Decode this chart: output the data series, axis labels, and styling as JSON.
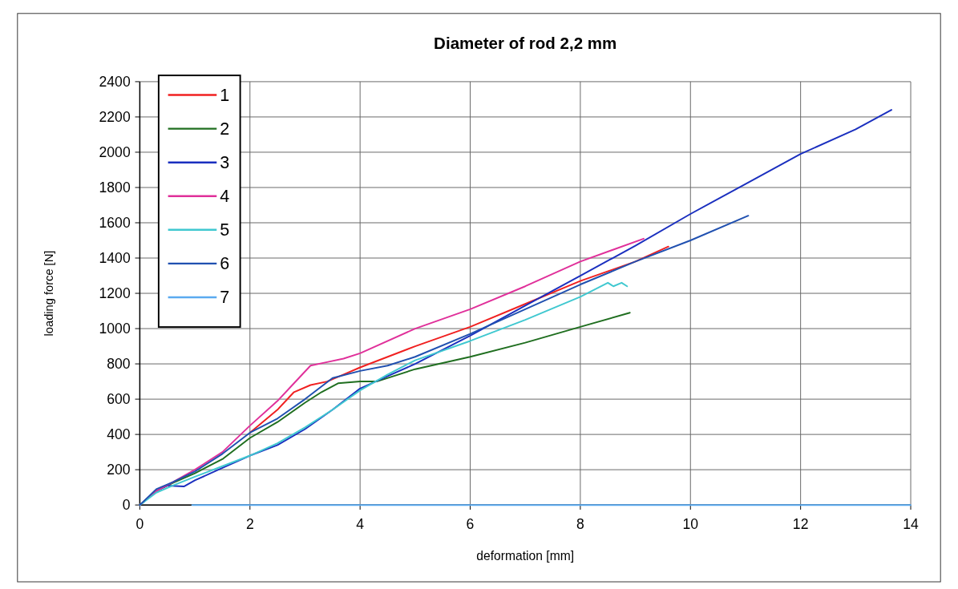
{
  "chart_data": {
    "type": "line",
    "title": "Diameter of rod 2,2 mm",
    "xlabel": "deformation [mm]",
    "ylabel": "loading force [N]",
    "xlim": [
      0,
      14
    ],
    "ylim": [
      0,
      2400
    ],
    "xticks": [
      0,
      2,
      4,
      6,
      8,
      10,
      12,
      14
    ],
    "yticks": [
      0,
      200,
      400,
      600,
      800,
      1000,
      1200,
      1400,
      1600,
      1800,
      2000,
      2200,
      2400
    ],
    "grid": true,
    "legend": "top left",
    "line_style": "solid",
    "marker": "none",
    "series": [
      {
        "name": "1",
        "color": "#f02020",
        "x": [
          2,
          2.5,
          2.8,
          3.1,
          3.4,
          3.7,
          4,
          5,
          6,
          7,
          8,
          9,
          9.6
        ],
        "values": [
          410,
          540,
          640,
          680,
          700,
          740,
          780,
          900,
          1010,
          1140,
          1270,
          1380,
          1465
        ]
      },
      {
        "name": "2",
        "color": "#1f6e1f",
        "x": [
          0,
          0.3,
          0.6,
          1,
          1.5,
          2,
          2.5,
          3,
          3.3,
          3.6,
          4,
          4.3,
          5,
          6,
          7,
          8,
          8.9
        ],
        "values": [
          0,
          80,
          125,
          180,
          260,
          380,
          470,
          580,
          640,
          690,
          700,
          700,
          770,
          840,
          920,
          1010,
          1090
        ]
      },
      {
        "name": "3",
        "color": "#1a2fbf",
        "x": [
          0,
          0.3,
          0.5,
          0.8,
          1,
          1.5,
          2,
          2.5,
          3,
          3.5,
          4,
          4.5,
          5,
          6,
          7,
          8,
          9,
          10,
          11,
          12,
          13,
          13.65
        ],
        "values": [
          0,
          80,
          110,
          105,
          140,
          210,
          280,
          340,
          430,
          540,
          660,
          730,
          800,
          960,
          1130,
          1300,
          1470,
          1650,
          1820,
          1990,
          2130,
          2240
        ]
      },
      {
        "name": "4",
        "color": "#e0309a",
        "x": [
          0,
          0.3,
          0.6,
          1,
          1.5,
          2,
          2.5,
          2.8,
          3.1,
          3.4,
          3.7,
          4,
          5,
          6,
          7,
          8,
          9.15
        ],
        "values": [
          0,
          80,
          130,
          200,
          300,
          450,
          590,
          690,
          790,
          810,
          830,
          860,
          1000,
          1110,
          1240,
          1380,
          1510
        ]
      },
      {
        "name": "5",
        "color": "#40c8d0",
        "x": [
          0,
          0.3,
          0.6,
          1,
          1.5,
          2,
          2.5,
          3,
          3.5,
          4,
          4.5,
          5,
          6,
          7,
          8,
          8.5,
          8.6,
          8.75,
          8.85
        ],
        "values": [
          0,
          70,
          110,
          160,
          220,
          280,
          350,
          440,
          540,
          650,
          740,
          820,
          930,
          1050,
          1180,
          1260,
          1240,
          1260,
          1240
        ]
      },
      {
        "name": "6",
        "color": "#2050b0",
        "x": [
          0,
          0.3,
          0.6,
          1,
          1.5,
          2,
          2.5,
          3,
          3.5,
          4,
          4.5,
          5,
          6,
          7,
          8,
          9,
          10,
          11.05
        ],
        "values": [
          0,
          90,
          130,
          190,
          290,
          410,
          490,
          600,
          720,
          760,
          790,
          840,
          970,
          1110,
          1250,
          1380,
          1500,
          1640
        ]
      },
      {
        "name": "7",
        "color": "#5aaaf0",
        "x": [
          0.95,
          14
        ],
        "values": [
          0,
          0
        ]
      }
    ]
  }
}
